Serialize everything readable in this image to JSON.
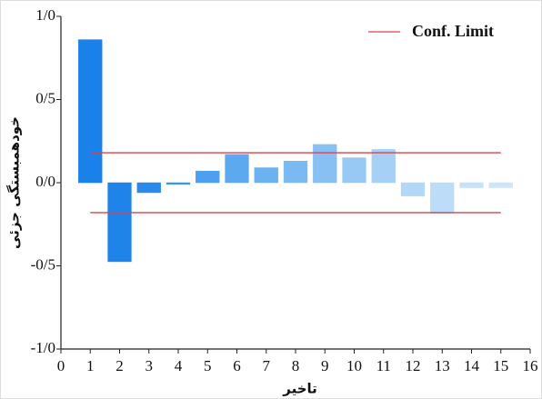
{
  "chart_data": {
    "type": "bar",
    "xlabel": "تاخیر",
    "ylabel": "خودهمبستگی جزئی",
    "x": [
      1,
      2,
      3,
      4,
      5,
      6,
      7,
      8,
      9,
      10,
      11,
      12,
      13,
      14,
      15
    ],
    "values": [
      0.86,
      -0.475,
      -0.06,
      -0.01,
      0.07,
      0.17,
      0.09,
      0.13,
      0.23,
      0.15,
      0.2,
      -0.08,
      -0.185,
      -0.03,
      -0.03
    ],
    "colors": [
      "#1a80ea",
      "#1f84ea",
      "#2a8aeb",
      "#3a93ee",
      "#4ca0ef",
      "#5ca9f0",
      "#6cb1f1",
      "#7ab9f2",
      "#88c0f4",
      "#98c9f5",
      "#a6d0f6",
      "#b2d7f7",
      "#bddcf8",
      "#c6e1f9",
      "#cfe6fa"
    ],
    "conf_limit": {
      "name": "Conf. Limit",
      "color": "#d9434a",
      "values": [
        0.18,
        -0.18
      ]
    },
    "xlim": [
      0,
      16
    ],
    "xticks": [
      0,
      1,
      2,
      3,
      4,
      5,
      6,
      7,
      8,
      9,
      10,
      11,
      12,
      13,
      14,
      15,
      16
    ],
    "ylim": [
      -1,
      1
    ],
    "yticks": [
      {
        "value": -1,
        "label": "-1/0"
      },
      {
        "value": -0.5,
        "label": "-0/5"
      },
      {
        "value": 0,
        "label": "0/0"
      },
      {
        "value": 0.5,
        "label": "0/5"
      },
      {
        "value": 1,
        "label": "1/0"
      }
    ],
    "legend": "upper right"
  }
}
